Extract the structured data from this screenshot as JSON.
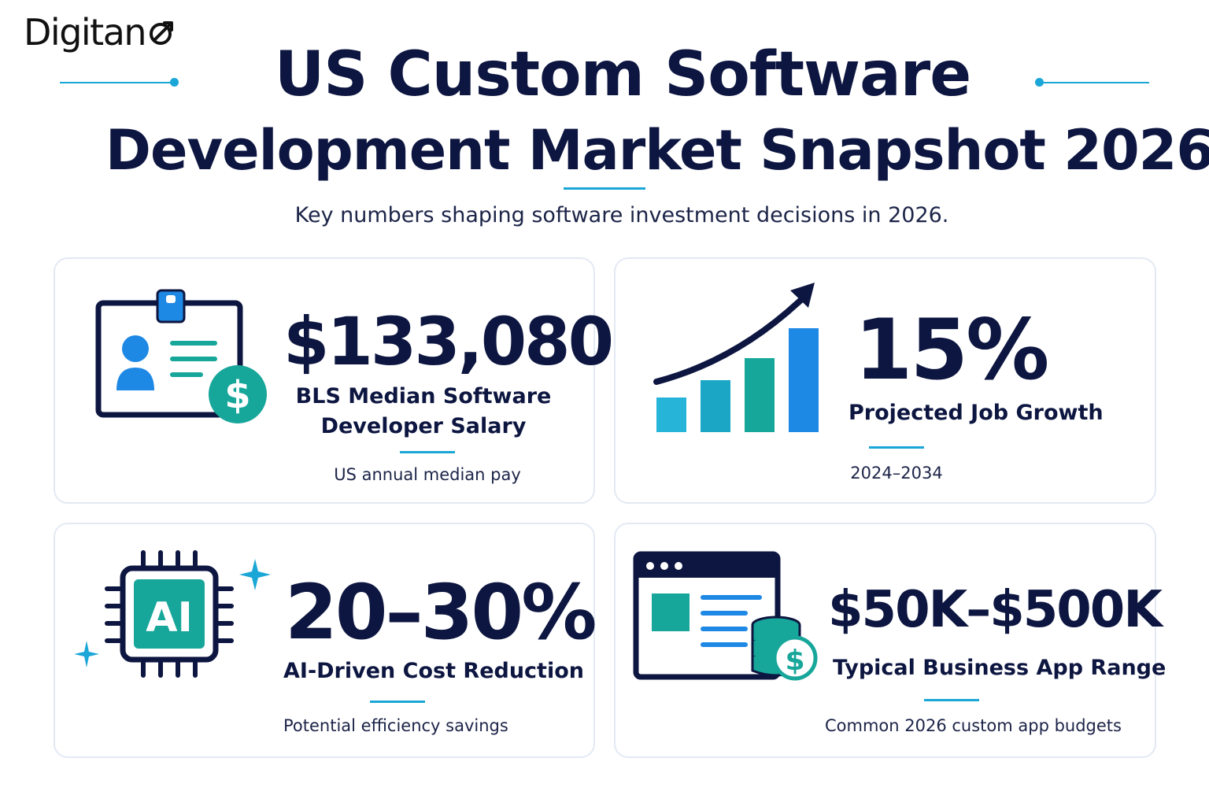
{
  "brand": {
    "logo_text": "Digitan",
    "logo_mark": "o-arrow-icon"
  },
  "header": {
    "title_line1": "US Custom Software",
    "title_line2": "Development Market Snapshot 2026",
    "subtitle": "Key numbers shaping software investment decisions in 2026."
  },
  "colors": {
    "navy": "#0d1640",
    "accent": "#1aa6d6",
    "teal": "#17a69a",
    "blue": "#1e88e5"
  },
  "cards": [
    {
      "icon": "id-badge-dollar-icon",
      "value": "$133,080",
      "label_line1": "BLS Median Software",
      "label_line2": "Developer Salary",
      "note": "US annual median pay"
    },
    {
      "icon": "growth-bar-chart-icon",
      "value": "15%",
      "label_line1": "Projected Job Growth",
      "note": "2024–2034"
    },
    {
      "icon": "ai-chip-icon",
      "icon_text": "AI",
      "value": "20–30%",
      "label_line1": "AI-Driven Cost Reduction",
      "note": "Potential efficiency savings"
    },
    {
      "icon": "app-window-coins-icon",
      "value": "$50K–$500K",
      "label_line1": "Typical Business App Range",
      "note": "Common 2026 custom app budgets"
    }
  ]
}
